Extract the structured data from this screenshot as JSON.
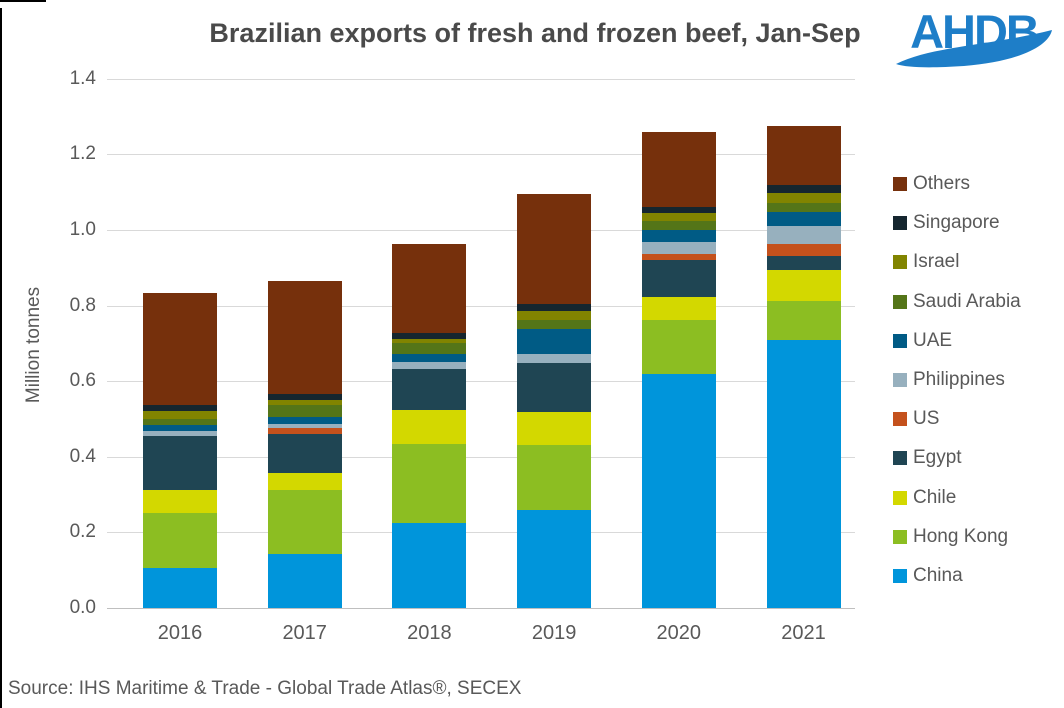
{
  "title": "Brazilian exports of fresh and frozen beef, Jan-Sep",
  "logo": {
    "text": "AHDB",
    "color": "#1e7ec8"
  },
  "source": "Source: IHS Maritime & Trade - Global Trade Atlas®, SECEX",
  "colors": {
    "text": "#595959",
    "title_text": "#4a4a4a",
    "gridline": "#d9d9d9",
    "axis_line": "#bfbfbf"
  },
  "chart_data": {
    "type": "bar",
    "stacked": true,
    "title": "Brazilian exports of fresh and frozen beef, Jan-Sep",
    "xlabel": "",
    "ylabel": "Million tonnes",
    "ylim": [
      0,
      1.4
    ],
    "yticks": [
      0.0,
      0.2,
      0.4,
      0.6,
      0.8,
      1.0,
      1.2,
      1.4
    ],
    "grid": true,
    "legend_position": "right",
    "legend_order_note": "legend lists series top of stack first (Others) to bottom (China)",
    "categories": [
      "2016",
      "2017",
      "2018",
      "2019",
      "2020",
      "2021"
    ],
    "series": [
      {
        "name": "China",
        "color": "#0095db",
        "values": [
          0.106,
          0.144,
          0.225,
          0.259,
          0.62,
          0.71
        ]
      },
      {
        "name": "Hong Kong",
        "color": "#8cbe22",
        "values": [
          0.145,
          0.169,
          0.21,
          0.173,
          0.143,
          0.103
        ]
      },
      {
        "name": "Chile",
        "color": "#d3d800",
        "values": [
          0.06,
          0.044,
          0.088,
          0.087,
          0.061,
          0.081
        ]
      },
      {
        "name": "Egypt",
        "color": "#1f4553",
        "values": [
          0.145,
          0.102,
          0.109,
          0.13,
          0.096,
          0.037
        ]
      },
      {
        "name": "US",
        "color": "#c4511c",
        "values": [
          0.0,
          0.016,
          0.0,
          0.0,
          0.016,
          0.033
        ]
      },
      {
        "name": "Philippines",
        "color": "#97b0be",
        "values": [
          0.012,
          0.011,
          0.02,
          0.024,
          0.031,
          0.047
        ]
      },
      {
        "name": "UAE",
        "color": "#005b85",
        "values": [
          0.015,
          0.018,
          0.02,
          0.064,
          0.033,
          0.036
        ]
      },
      {
        "name": "Saudi Arabia",
        "color": "#547518",
        "values": [
          0.018,
          0.033,
          0.029,
          0.026,
          0.023,
          0.024
        ]
      },
      {
        "name": "Israel",
        "color": "#818400",
        "values": [
          0.02,
          0.012,
          0.011,
          0.024,
          0.021,
          0.026
        ]
      },
      {
        "name": "Singapore",
        "color": "#15262f",
        "values": [
          0.016,
          0.016,
          0.015,
          0.018,
          0.017,
          0.023
        ]
      },
      {
        "name": "Others",
        "color": "#76300c",
        "values": [
          0.296,
          0.3,
          0.237,
          0.291,
          0.198,
          0.154
        ]
      }
    ],
    "totals": [
      0.833,
      0.865,
      0.964,
      1.096,
      1.258,
      1.274
    ]
  }
}
